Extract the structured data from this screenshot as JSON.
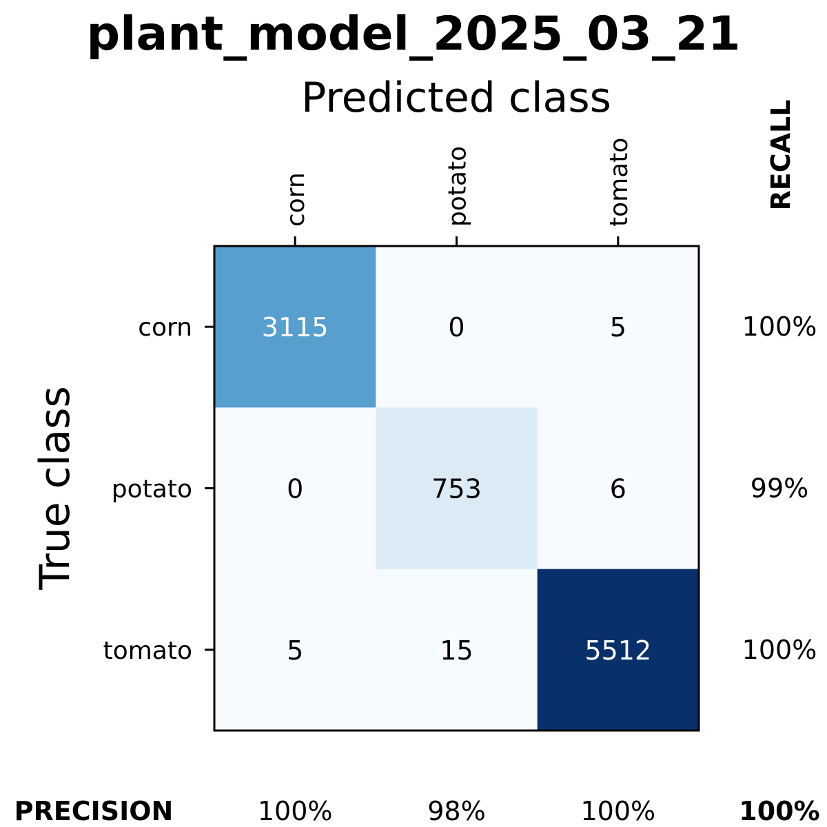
{
  "chart_data": {
    "type": "heatmap",
    "title": "plant_model_2025_03_21",
    "xlabel": "Predicted class",
    "ylabel": "True class",
    "classes": [
      "corn",
      "potato",
      "tomato"
    ],
    "matrix": [
      [
        3115,
        0,
        5
      ],
      [
        0,
        753,
        6
      ],
      [
        5,
        15,
        5512
      ]
    ],
    "recall_label": "RECALL",
    "recall": [
      "100%",
      "99%",
      "100%"
    ],
    "precision_label": "PRECISION",
    "precision": [
      "100%",
      "98%",
      "100%"
    ],
    "overall": "100%",
    "colormap": "Blues",
    "color_low": "#f7fbff",
    "color_high": "#08306b"
  }
}
